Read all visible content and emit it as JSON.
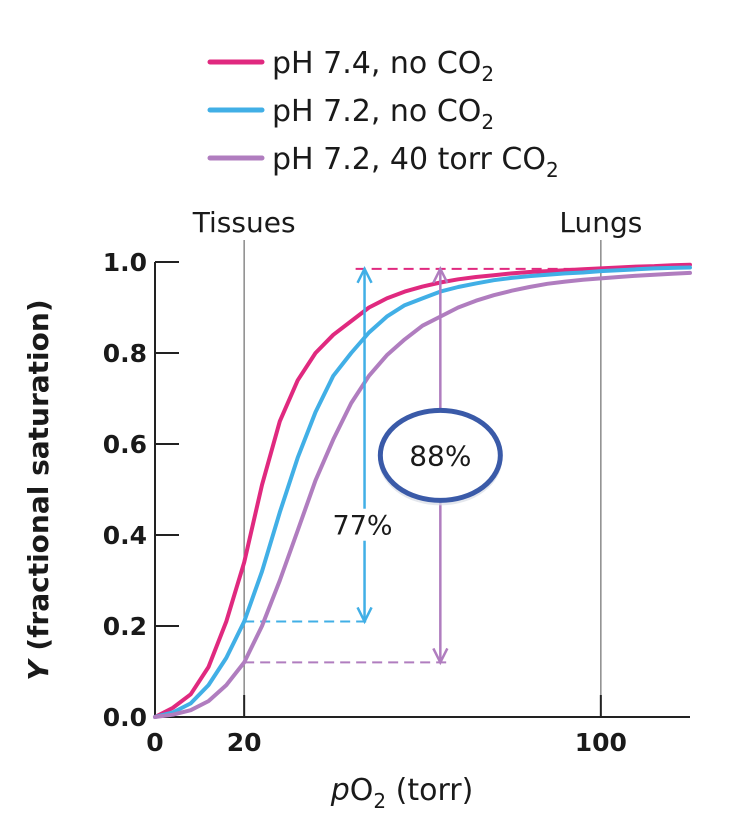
{
  "chart_data": {
    "type": "line",
    "xlabel_pre": "p",
    "xlabel_main": "O",
    "xlabel_sub": "2",
    "xlabel_post": " (torr)",
    "ylabel_italic": "Y",
    "ylabel_rest": " (fractional saturation)",
    "xlim": [
      0,
      120
    ],
    "ylim": [
      0,
      1.0
    ],
    "x_ticks": [
      {
        "value": 0,
        "label": "0"
      },
      {
        "value": 20,
        "label": "20"
      },
      {
        "value": 100,
        "label": "100"
      }
    ],
    "y_ticks": [
      {
        "value": 0.0,
        "label": "0.0"
      },
      {
        "value": 0.2,
        "label": "0.2"
      },
      {
        "value": 0.4,
        "label": "0.4"
      },
      {
        "value": 0.6,
        "label": "0.6"
      },
      {
        "value": 0.8,
        "label": "0.8"
      },
      {
        "value": 1.0,
        "label": "1.0"
      }
    ],
    "reference_lines": [
      {
        "x": 20,
        "label": "Tissues"
      },
      {
        "x": 100,
        "label": "Lungs"
      }
    ],
    "series": [
      {
        "name": "pH 7.4, no CO",
        "name_sub": "2",
        "color": "#e0297f",
        "x": [
          0,
          4,
          8,
          12,
          16,
          20,
          24,
          28,
          32,
          36,
          40,
          44,
          48,
          52,
          56,
          60,
          64,
          68,
          72,
          76,
          80,
          84,
          88,
          92,
          96,
          100,
          104,
          108,
          112,
          116,
          120
        ],
        "y": [
          0.0,
          0.02,
          0.05,
          0.11,
          0.21,
          0.34,
          0.51,
          0.65,
          0.74,
          0.8,
          0.84,
          0.87,
          0.9,
          0.92,
          0.935,
          0.946,
          0.955,
          0.962,
          0.967,
          0.971,
          0.975,
          0.978,
          0.98,
          0.982,
          0.984,
          0.986,
          0.988,
          0.99,
          0.991,
          0.993,
          0.994
        ]
      },
      {
        "name": "pH 7.2, no CO",
        "name_sub": "2",
        "color": "#41afe6",
        "x": [
          0,
          4,
          8,
          12,
          16,
          20,
          24,
          28,
          32,
          36,
          40,
          44,
          48,
          52,
          56,
          60,
          64,
          68,
          72,
          76,
          80,
          84,
          88,
          92,
          96,
          100,
          104,
          108,
          112,
          116,
          120
        ],
        "y": [
          0.0,
          0.01,
          0.03,
          0.07,
          0.13,
          0.21,
          0.32,
          0.45,
          0.57,
          0.67,
          0.75,
          0.8,
          0.845,
          0.88,
          0.905,
          0.92,
          0.935,
          0.945,
          0.953,
          0.96,
          0.965,
          0.969,
          0.972,
          0.975,
          0.977,
          0.98,
          0.982,
          0.984,
          0.986,
          0.987,
          0.988
        ]
      },
      {
        "name": "pH 7.2, 40 torr CO",
        "name_sub": "2",
        "color": "#b07dbf",
        "x": [
          0,
          4,
          8,
          12,
          16,
          20,
          24,
          28,
          32,
          36,
          40,
          44,
          48,
          52,
          56,
          60,
          64,
          68,
          72,
          76,
          80,
          84,
          88,
          92,
          96,
          100,
          104,
          108,
          112,
          116,
          120
        ],
        "y": [
          0.0,
          0.005,
          0.015,
          0.035,
          0.07,
          0.12,
          0.2,
          0.3,
          0.41,
          0.52,
          0.61,
          0.69,
          0.75,
          0.795,
          0.83,
          0.86,
          0.88,
          0.9,
          0.915,
          0.927,
          0.937,
          0.945,
          0.952,
          0.957,
          0.961,
          0.964,
          0.967,
          0.97,
          0.972,
          0.974,
          0.976
        ]
      }
    ],
    "annotations": [
      {
        "label": "77%",
        "x": 47,
        "y_from": 0.21,
        "y_to": 0.985,
        "color": "#41afe6",
        "from_series": 1
      },
      {
        "label": "88%",
        "x": 64,
        "y_from": 0.12,
        "y_to": 0.985,
        "color": "#b07dbf",
        "from_series": 2,
        "circled": true,
        "circle_color": "#3a5aa8"
      }
    ],
    "top_dashed_line": {
      "y": 0.985,
      "x_from": 45,
      "x_to": 100,
      "color": "#e0297f"
    }
  }
}
